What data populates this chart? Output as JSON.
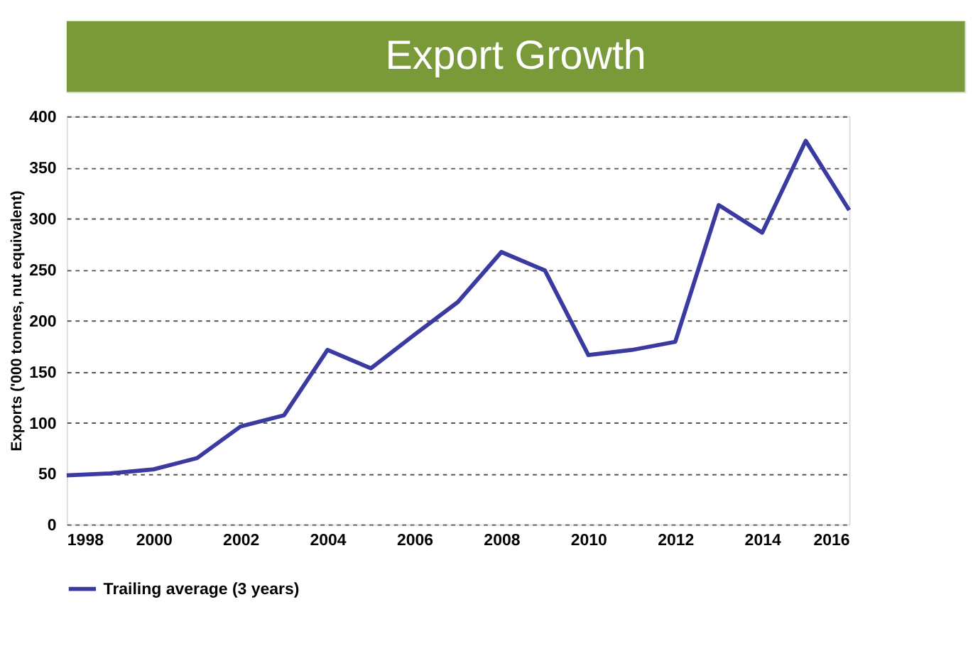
{
  "chart_data": {
    "type": "line",
    "title": "Export Growth",
    "ylabel": "Exports ('000 tonnes, nut equivalent)",
    "x": [
      1998,
      1999,
      2000,
      2001,
      2002,
      2003,
      2004,
      2005,
      2006,
      2007,
      2008,
      2009,
      2010,
      2011,
      2012,
      2013,
      2014,
      2015,
      2016
    ],
    "series": [
      {
        "name": "Trailing average (3 years)",
        "color": "#3a3aa0",
        "values": [
          48,
          50,
          54,
          65,
          96,
          107,
          171,
          153,
          186,
          218,
          267,
          249,
          166,
          171,
          179,
          313,
          286,
          376,
          308
        ]
      }
    ],
    "xlim": [
      1998,
      2016
    ],
    "xticks": [
      1998,
      2000,
      2002,
      2004,
      2006,
      2008,
      2010,
      2012,
      2014,
      2016
    ],
    "ylim": [
      0,
      400
    ],
    "yticks": [
      0,
      50,
      100,
      150,
      200,
      250,
      300,
      350,
      400
    ],
    "grid": "y",
    "legend": "bottom",
    "marker": "none",
    "line_style": "solid"
  }
}
